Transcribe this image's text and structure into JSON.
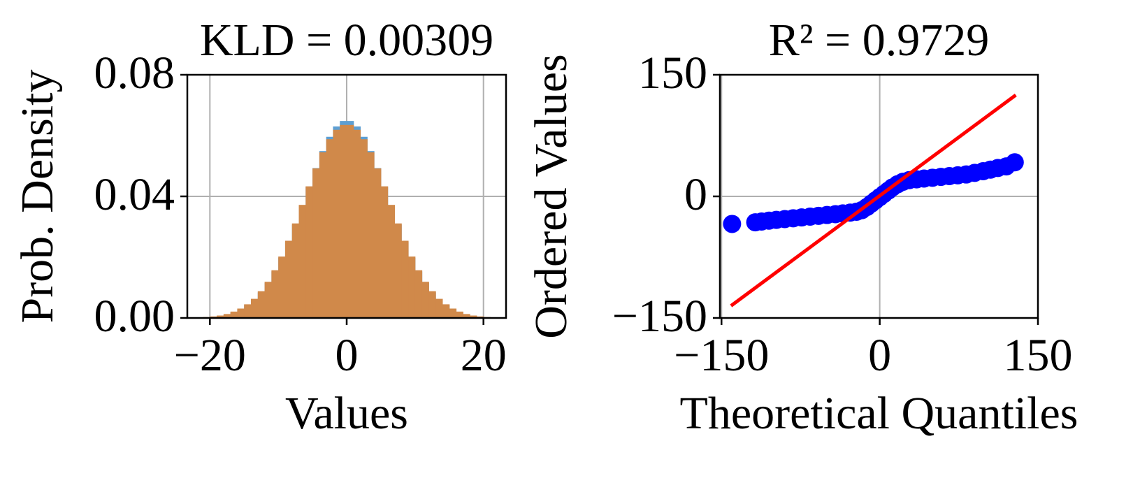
{
  "chart_data": [
    {
      "type": "histogram",
      "title": "KLD = 0.00309",
      "x_label": "Values",
      "y_label": "Prob. Density",
      "bins": [
        -21,
        -20,
        -19,
        -18,
        -17,
        -16,
        -15,
        -14,
        -13,
        -12,
        -11,
        -10,
        -9,
        -8,
        -7,
        -6,
        -5,
        -4,
        -3,
        -2,
        -1,
        0,
        1,
        2,
        3,
        4,
        5,
        6,
        7,
        8,
        9,
        10,
        11,
        12,
        13,
        14,
        15,
        16,
        17,
        18,
        19,
        20,
        21
      ],
      "series": [
        {
          "color": "#5d9fd3",
          "values": [
            0.0002,
            0.0004,
            0.0007,
            0.0011,
            0.0018,
            0.0028,
            0.0042,
            0.006,
            0.0084,
            0.0115,
            0.0153,
            0.0198,
            0.025,
            0.0307,
            0.0369,
            0.0432,
            0.0493,
            0.0549,
            0.0596,
            0.063,
            0.0648,
            0.0648,
            0.063,
            0.0596,
            0.0549,
            0.0493,
            0.0432,
            0.0369,
            0.0307,
            0.025,
            0.0198,
            0.0153,
            0.0115,
            0.0084,
            0.006,
            0.0042,
            0.0028,
            0.0018,
            0.0011,
            0.0007,
            0.0004,
            0.0002
          ]
        },
        {
          "color": "#d0894a",
          "values": [
            0.0003,
            0.0005,
            0.0008,
            0.0013,
            0.0021,
            0.0031,
            0.0045,
            0.0063,
            0.0088,
            0.0119,
            0.0157,
            0.0202,
            0.0254,
            0.0311,
            0.0372,
            0.0433,
            0.0492,
            0.0545,
            0.0588,
            0.0619,
            0.0635,
            0.0635,
            0.0619,
            0.0588,
            0.0545,
            0.0492,
            0.0433,
            0.0372,
            0.0311,
            0.0254,
            0.0202,
            0.0157,
            0.0119,
            0.0088,
            0.0063,
            0.0045,
            0.0031,
            0.0021,
            0.0013,
            0.0008,
            0.0005,
            0.0003
          ]
        }
      ],
      "xlim": [
        -23.3,
        23.3
      ],
      "xticks": [
        {
          "value": -20,
          "label": "−20"
        },
        0,
        20
      ],
      "ylim": [
        0,
        0.08
      ],
      "yticks": [
        {
          "value": 0,
          "label": "0.00"
        },
        {
          "value": 0.04,
          "label": "0.04"
        },
        {
          "value": 0.08,
          "label": "0.08"
        }
      ],
      "grid": true
    },
    {
      "type": "scatter",
      "title": "R² = 0.9729",
      "x_label": "Theoretical Quantiles",
      "y_label": "Ordered Values",
      "series": [
        {
          "mode": "markers",
          "color": "#0000ff",
          "x": [
            -140,
            -118,
            -112,
            -105,
            -98,
            -90,
            -82,
            -74,
            -66,
            -58,
            -50,
            -42,
            -35,
            -28,
            -22,
            -17,
            -12,
            -8,
            -4,
            0,
            4,
            8,
            12,
            17,
            22,
            28,
            35,
            42,
            50,
            58,
            66,
            74,
            82,
            90,
            98,
            105,
            112,
            120,
            128
          ],
          "values": [
            -34,
            -32,
            -31,
            -30,
            -29,
            -28,
            -27,
            -26,
            -25,
            -24,
            -23,
            -22,
            -21,
            -20,
            -19,
            -17,
            -13,
            -9,
            -5,
            -1,
            3,
            7,
            11,
            15,
            18,
            20,
            21,
            22,
            23,
            24,
            25,
            26,
            27,
            29,
            31,
            33,
            35,
            37,
            42
          ]
        },
        {
          "mode": "line",
          "color": "#ff0000",
          "x": [
            -141,
            129
          ],
          "values": [
            -135,
            125
          ]
        }
      ],
      "xlim": [
        -151.5,
        150
      ],
      "xticks": [
        {
          "value": -150,
          "label": "−150"
        },
        0,
        150
      ],
      "ylim": [
        -150,
        150
      ],
      "yticks": [
        {
          "value": -150,
          "label": "−150"
        },
        0,
        150
      ],
      "grid": true
    }
  ]
}
